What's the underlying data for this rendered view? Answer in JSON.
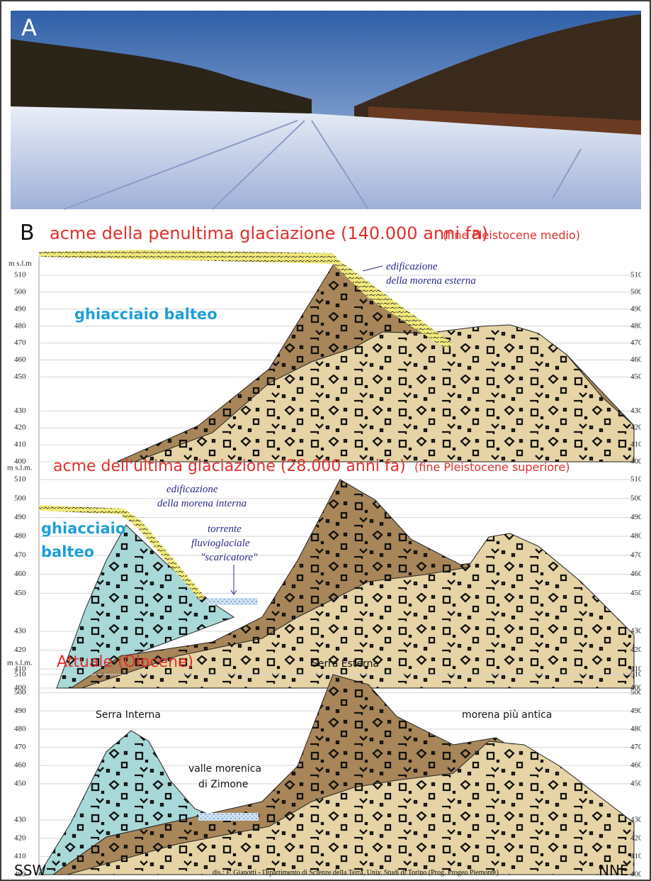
{
  "panel_a": {
    "label": "A"
  },
  "panel_b": {
    "label": "B",
    "sections": [
      {
        "title": "acme della penultima glaciazione (140.000 anni fa)",
        "subtitle": "(fine Pleistocene medio)",
        "unit": "m s.l.m",
        "yticks": [
          510,
          500,
          490,
          480,
          470,
          460,
          450,
          430,
          420,
          410,
          400
        ],
        "ice_label": "ghiacciaio  balteo",
        "annotation": [
          "edificazione",
          "della morena esterna"
        ]
      },
      {
        "title": "acme dell'ultima glaciazione (28.000 anni fa)",
        "subtitle": "(fine Pleistocene superiore)",
        "unit": "m s.l.m.",
        "yticks": [
          510,
          500,
          490,
          480,
          470,
          460,
          450,
          430,
          420,
          410,
          400
        ],
        "ice_label": [
          "ghiacciaio",
          "balteo"
        ],
        "annotation": [
          "edificazione",
          "della morena interna"
        ],
        "stream": [
          "torrente",
          "fluvioglaciale",
          "\"scaricatore\""
        ]
      },
      {
        "title": "Attuale  (Olocene)",
        "unit": "m s.l.m.",
        "yticks": [
          510,
          500,
          490,
          480,
          470,
          460,
          450,
          430,
          420,
          410,
          400
        ],
        "features": [
          "Serra Esterna",
          "Serra Interna",
          "morena più antica"
        ],
        "valley": [
          "valle morenica",
          "di Zimone"
        ]
      }
    ]
  },
  "orientation": {
    "left": "SSW",
    "right": "NNE"
  },
  "credit": "dis.: F. Gianotti - Dipartimento di Scienze della Terra, Univ. Studi di Torino (Prog. Progeo Piemonte)"
}
